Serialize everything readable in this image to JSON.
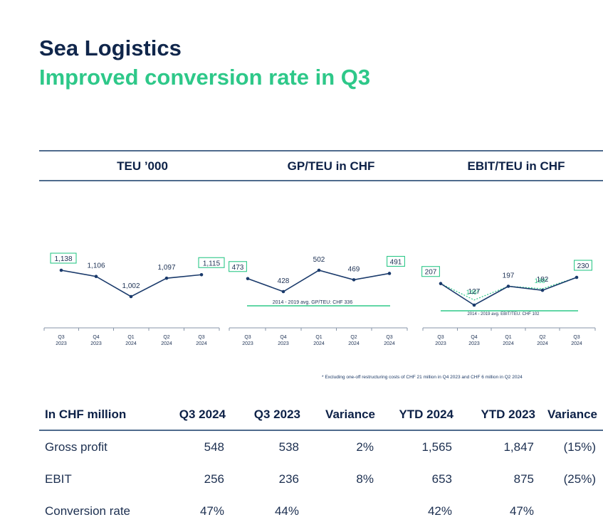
{
  "header": {
    "title": "Sea Logistics",
    "subtitle": "Improved conversion rate in Q3"
  },
  "columns": {
    "teu": "TEU ’000",
    "gp": "GP/TEU in CHF",
    "ebit": "EBIT/TEU in CHF"
  },
  "chart_data": [
    {
      "type": "line",
      "title": "TEU ’000",
      "categories": [
        "Q3\n2023",
        "Q4\n2023",
        "Q1\n2024",
        "Q2\n2024",
        "Q3\n2024"
      ],
      "values": [
        1138,
        1106,
        1002,
        1097,
        1115
      ],
      "labels": [
        "1,138",
        "1,106",
        "1,002",
        "1,097",
        "1,115"
      ],
      "highlighted": [
        0,
        4
      ],
      "colors": {
        "line": "#1a3a6b",
        "highlight": "#2ec889"
      }
    },
    {
      "type": "line",
      "title": "GP/TEU in CHF",
      "categories": [
        "Q3\n2023",
        "Q4\n2023",
        "Q1\n2024",
        "Q2\n2024",
        "Q3\n2024"
      ],
      "values": [
        473,
        428,
        502,
        469,
        491
      ],
      "labels": [
        "473",
        "428",
        "502",
        "469",
        "491"
      ],
      "highlighted": [
        0,
        4
      ],
      "reference": {
        "value": 336,
        "label": "2014 - 2019 avg. GP/TEU: CHF 336"
      },
      "colors": {
        "line": "#1a3a6b",
        "highlight": "#2ec889"
      }
    },
    {
      "type": "line",
      "title": "EBIT/TEU in CHF",
      "categories": [
        "Q3\n2023",
        "Q4\n2023",
        "Q1\n2024",
        "Q2\n2024",
        "Q3\n2024"
      ],
      "values": [
        207,
        127,
        197,
        182,
        230
      ],
      "labels": [
        "207",
        "127",
        "197",
        "182",
        "230"
      ],
      "highlighted": [
        0,
        4
      ],
      "adjusted": {
        "series_name": "Excluding one-off restructuring costs",
        "values": [
          207,
          146,
          197,
          188,
          230
        ],
        "labels": {
          "1": "146*",
          "3": "188*"
        }
      },
      "reference": {
        "value": 102,
        "label": "2014 - 2019 avg. EBIT/TEU: CHF 102"
      },
      "colors": {
        "line": "#1a3a6b",
        "highlight": "#2ec889"
      }
    }
  ],
  "footnote": "* Excluding one-off restructuring costs of CHF 21 million in Q4 2023 and CHF 6 million in Q2 2024",
  "table": {
    "headers": [
      "In CHF million",
      "Q3 2024",
      "Q3 2023",
      "Variance",
      "YTD 2024",
      "YTD 2023",
      "Variance"
    ],
    "rows": [
      [
        "Gross profit",
        "548",
        "538",
        "2%",
        "1,565",
        "1,847",
        "(15%)"
      ],
      [
        "EBIT",
        "256",
        "236",
        "8%",
        "653",
        "875",
        "(25%)"
      ],
      [
        "Conversion rate",
        "47%",
        "44%",
        "",
        "42%",
        "47%",
        ""
      ]
    ]
  }
}
